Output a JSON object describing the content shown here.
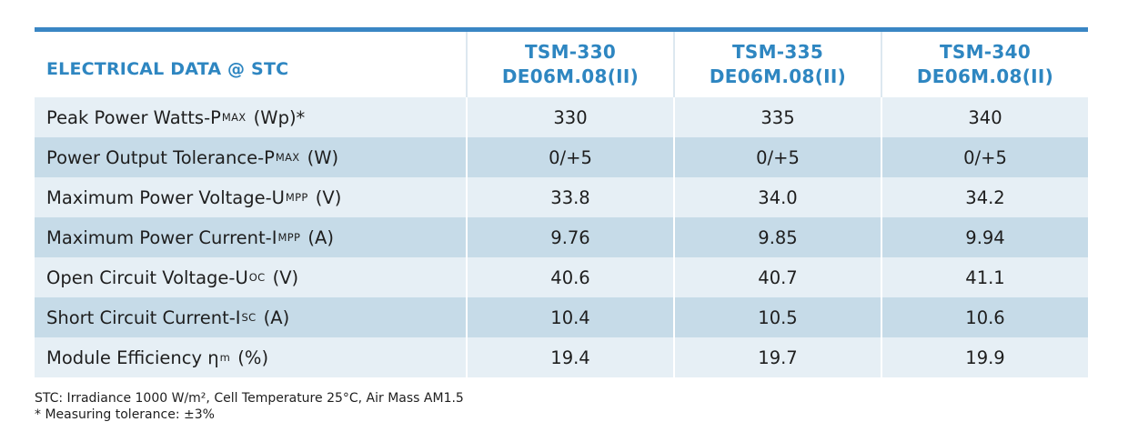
{
  "table": {
    "header": {
      "title": "ELECTRICAL DATA @ STC",
      "models": [
        {
          "line1": "TSM-330",
          "line2": "DE06M.08(II)"
        },
        {
          "line1": "TSM-335",
          "line2": "DE06M.08(II)"
        },
        {
          "line1": "TSM-340",
          "line2": "DE06M.08(II)"
        }
      ]
    },
    "rows": [
      {
        "pre": "Peak Power Watts-",
        "sym": "P",
        "sub": "MAX",
        "post": " (Wp)*",
        "values": [
          "330",
          "335",
          "340"
        ]
      },
      {
        "pre": "Power Output Tolerance-",
        "sym": "P",
        "sub": "MAX",
        "post": " (W)",
        "values": [
          "0/+5",
          "0/+5",
          "0/+5"
        ]
      },
      {
        "pre": "Maximum Power Voltage-",
        "sym": "U",
        "sub": "MPP",
        "post": " (V)",
        "values": [
          "33.8",
          "34.0",
          "34.2"
        ]
      },
      {
        "pre": "Maximum Power Current-",
        "sym": "I",
        "sub": "MPP",
        "post": " (A)",
        "values": [
          "9.76",
          "9.85",
          "9.94"
        ]
      },
      {
        "pre": "Open Circuit Voltage-",
        "sym": "U",
        "sub": "OC",
        "post": " (V)",
        "values": [
          "40.6",
          "40.7",
          "41.1"
        ]
      },
      {
        "pre": "Short Circuit Current-",
        "sym": "I",
        "sub": "SC",
        "post": " (A)",
        "values": [
          "10.4",
          "10.5",
          "10.6"
        ]
      },
      {
        "pre": "Module Efficiency ",
        "sym": "η",
        "sub": "m",
        "post": " (%)",
        "values": [
          "19.4",
          "19.7",
          "19.9"
        ]
      }
    ]
  },
  "notes": {
    "stc": "STC: Irradiance 1000 W/m², Cell Temperature 25°C, Air Mass AM1.5",
    "tolerance": "* Measuring tolerance: ±3%"
  },
  "colors": {
    "accent": "#2e86c1",
    "top_rule": "#3a86c4",
    "row_dark": "#c6dbe8",
    "row_light": "#e6eff5"
  }
}
